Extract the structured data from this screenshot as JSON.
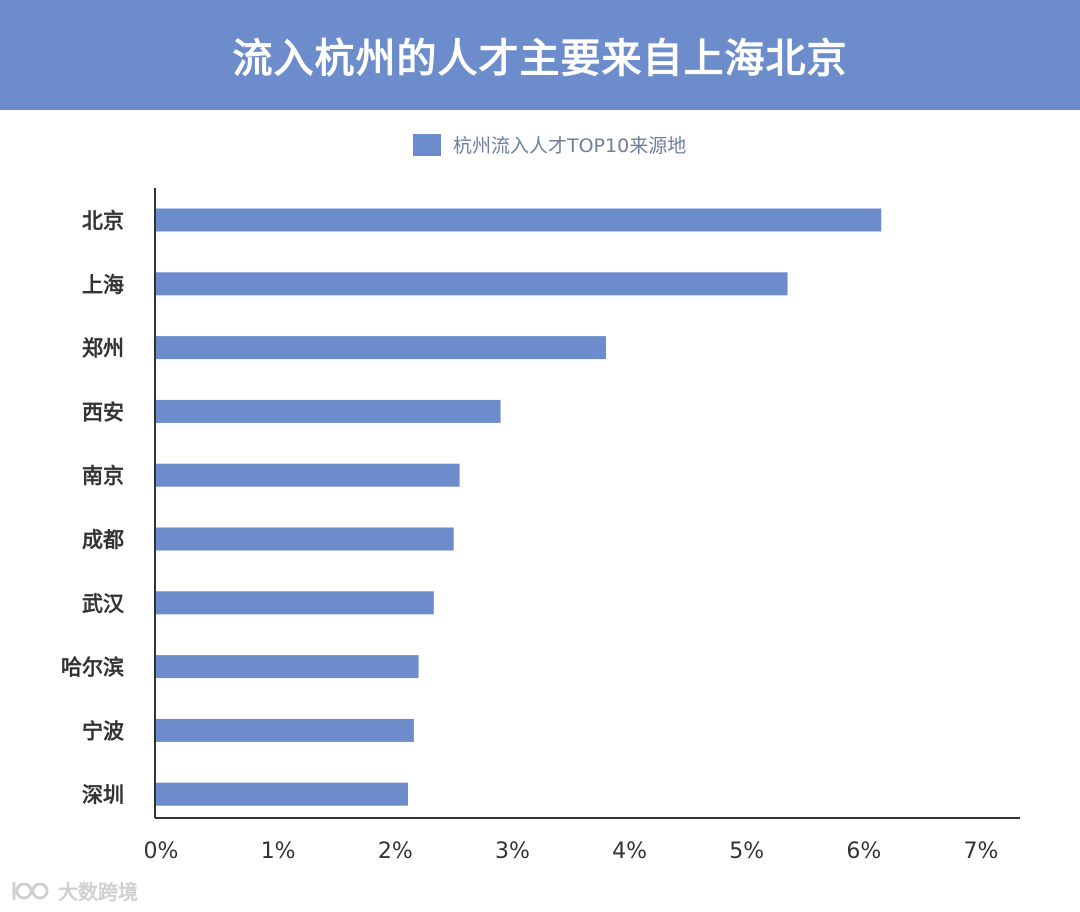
{
  "header": {
    "title": "流入杭州的人才主要来自上海北京"
  },
  "colors": {
    "banner": "#6c8ccb",
    "bar": "#6c8ccb",
    "axis": "#333333",
    "text": "#333333"
  },
  "watermark": {
    "text": "大数跨境"
  },
  "chart_data": {
    "type": "bar",
    "orientation": "horizontal",
    "title": "",
    "xlabel": "",
    "ylabel": "",
    "categories": [
      "北京",
      "上海",
      "郑州",
      "西安",
      "南京",
      "成都",
      "武汉",
      "哈尔滨",
      "宁波",
      "深圳"
    ],
    "series": [
      {
        "name": "杭州流入人才TOP10来源地",
        "values": [
          6.2,
          5.4,
          3.85,
          2.95,
          2.6,
          2.55,
          2.38,
          2.25,
          2.21,
          2.16
        ]
      }
    ],
    "xlim": [
      0,
      7
    ],
    "xticks": [
      "0%",
      "1%",
      "2%",
      "3%",
      "4%",
      "5%",
      "6%",
      "7%"
    ],
    "grid": false,
    "legend_position": "top-center"
  }
}
